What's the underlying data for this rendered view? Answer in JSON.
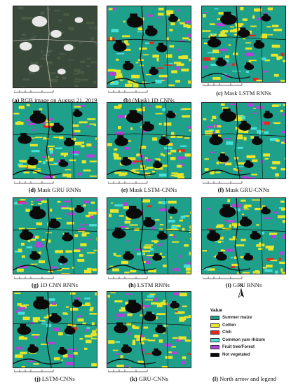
{
  "panels": [
    {
      "id": "a",
      "letter": "(a)",
      "text": " RGB image on August 21, 2019",
      "kind": "rgb"
    },
    {
      "id": "b",
      "letter": "(b)",
      "text": " (Mask) 1D CNNs",
      "kind": "class",
      "seed": 11
    },
    {
      "id": "c",
      "letter": "(c)",
      "text": " Mask LSTM RNNs",
      "kind": "class",
      "seed": 23
    },
    {
      "id": "d",
      "letter": "(d)",
      "text": " Mask GRU RNNs",
      "kind": "class",
      "seed": 37
    },
    {
      "id": "e",
      "letter": "(e)",
      "text": " Mask LSTM-CNNs",
      "kind": "class",
      "seed": 41
    },
    {
      "id": "f",
      "letter": "(f)",
      "text": " Mask GRU-CNNs",
      "kind": "class",
      "seed": 53
    },
    {
      "id": "g",
      "letter": "(g)",
      "text": " 1D CNN RNNs",
      "kind": "class",
      "seed": 67
    },
    {
      "id": "h",
      "letter": "(h)",
      "text": " LSTM RNNs",
      "kind": "class",
      "seed": 71
    },
    {
      "id": "i",
      "letter": "(i)",
      "text": " GRU RNNs",
      "kind": "class",
      "seed": 83
    },
    {
      "id": "j",
      "letter": "(j)",
      "text": " LSTM-CNNs",
      "kind": "class",
      "seed": 97
    },
    {
      "id": "k",
      "letter": "(k)",
      "text": " GRU-CNNs",
      "kind": "class",
      "seed": 101
    },
    {
      "id": "l",
      "letter": "(l)",
      "text": " North arrow and legend",
      "kind": "legend"
    }
  ],
  "north_label": "N",
  "legend": {
    "title": "Value",
    "items": [
      {
        "label": "Summer maize",
        "color": "#1fa08a"
      },
      {
        "label": "Cotton",
        "color": "#e6e62a"
      },
      {
        "label": "Chili",
        "color": "#e8261e"
      },
      {
        "label": "Common yam rhizom",
        "color": "#48e0d8"
      },
      {
        "label": "Fruit tree/Forest",
        "color": "#b044d8"
      },
      {
        "label": "Not vegetated",
        "color": "#0a0a0a"
      }
    ]
  },
  "colors": {
    "maize": "#1fa08a",
    "cotton": "#e6e62a",
    "chili": "#e8261e",
    "yam": "#48e0d8",
    "forest": "#b044d8",
    "notveg": "#0a0a0a",
    "rgb_dark": "#3a4a3a",
    "rgb_light": "#e8e8e6"
  }
}
